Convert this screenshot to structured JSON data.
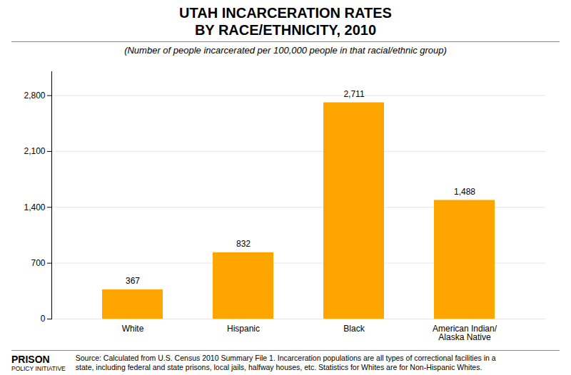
{
  "chart_data": {
    "type": "bar",
    "title": "UTAH INCARCERATION RATES\nBY RACE/ETHNICITY, 2010",
    "subtitle": "(Number of people incarcerated per 100,000 people in that racial/ethnic group)",
    "categories": [
      "White",
      "Hispanic",
      "Black",
      "American Indian/\nAlaska Native"
    ],
    "values": [
      367,
      832,
      2711,
      1488
    ],
    "value_labels": [
      "367",
      "832",
      "2,711",
      "1,488"
    ],
    "data_labels": true,
    "color": "#FFA500",
    "ylim": [
      0,
      3100
    ],
    "yticks": [
      0,
      700,
      {
        "value": 1400,
        "label": "1,400"
      },
      {
        "value": 2100,
        "label": "2,100"
      },
      {
        "value": 2800,
        "label": "2,800"
      }
    ],
    "grid": true,
    "annotations": [
      "Source: Calculated from U.S. Census 2010 Summary File 1. Incarceration populations are all types of correctional facilities in a\nstate, including federal and state prisons, local jails, halfway houses, etc. Statistics for Whites are for Non-Hispanic Whites.",
      "PRISON",
      "POLICY INITIATIVE"
    ]
  }
}
